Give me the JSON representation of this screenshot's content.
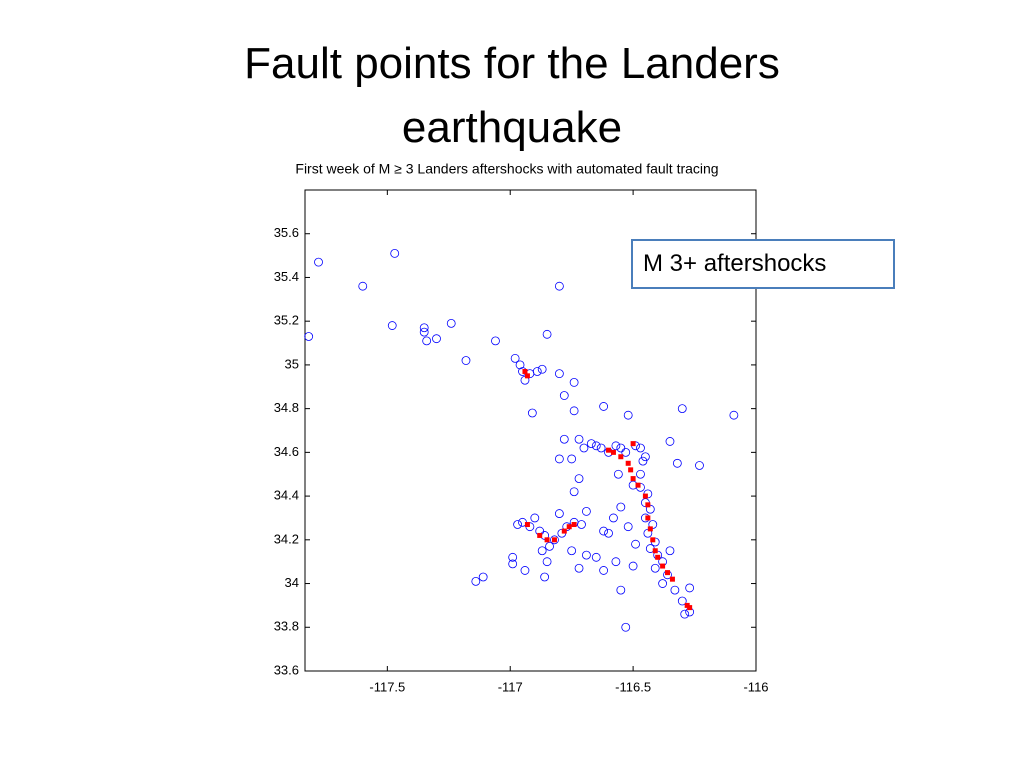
{
  "title": "Fault points for the Landers earthquake",
  "chart_data": {
    "type": "scatter",
    "title": "First week of M ≥ 3 Landers aftershocks with automated fault tracing",
    "annotation": "M 3+ aftershocks",
    "xlim": [
      -117.835,
      -116
    ],
    "ylim": [
      33.6,
      35.8
    ],
    "xticks": [
      -117.5,
      -117,
      -116.5,
      -116
    ],
    "yticks": [
      33.6,
      33.8,
      34,
      34.2,
      34.4,
      34.6,
      34.8,
      35,
      35.2,
      35.4,
      35.6
    ],
    "series": [
      {
        "color": "#0000ff",
        "marker": "circle",
        "x": [
          -117.82,
          -117.78,
          -117.6,
          -117.47,
          -117.48,
          -117.35,
          -117.35,
          -117.34,
          -117.3,
          -117.24,
          -117.18,
          -117.06,
          -116.85,
          -116.8,
          -116.98,
          -116.96,
          -116.95,
          -116.94,
          -116.92,
          -116.89,
          -116.87,
          -116.8,
          -116.74,
          -116.78,
          -116.91,
          -116.74,
          -116.62,
          -116.52,
          -116.3,
          -116.09,
          -116.23,
          -116.72,
          -116.7,
          -116.67,
          -116.65,
          -116.63,
          -116.6,
          -116.57,
          -116.55,
          -116.53,
          -116.49,
          -116.47,
          -116.46,
          -116.45,
          -116.47,
          -116.5,
          -116.47,
          -116.44,
          -116.45,
          -116.43,
          -116.45,
          -116.42,
          -116.44,
          -116.41,
          -116.43,
          -116.4,
          -116.38,
          -116.41,
          -116.36,
          -116.38,
          -116.33,
          -116.3,
          -116.27,
          -116.29,
          -116.27,
          -116.35,
          -116.52,
          -116.55,
          -116.58,
          -116.6,
          -116.65,
          -116.62,
          -116.57,
          -116.5,
          -116.49,
          -116.55,
          -116.53,
          -116.69,
          -116.72,
          -116.75,
          -116.8,
          -116.78,
          -116.74,
          -116.97,
          -116.95,
          -116.92,
          -116.9,
          -116.88,
          -116.86,
          -116.84,
          -116.87,
          -116.85,
          -116.82,
          -116.79,
          -116.77,
          -116.74,
          -116.71,
          -116.75,
          -116.72,
          -116.69,
          -116.86,
          -116.94,
          -116.99,
          -116.99,
          -117.14,
          -117.11,
          -116.8,
          -116.62,
          -116.56,
          -116.35,
          -116.32
        ],
        "values": [
          35.13,
          35.47,
          35.36,
          35.51,
          35.18,
          35.17,
          35.15,
          35.11,
          35.12,
          35.19,
          35.02,
          35.11,
          35.14,
          35.36,
          35.03,
          35.0,
          34.97,
          34.93,
          34.96,
          34.97,
          34.98,
          34.96,
          34.92,
          34.86,
          34.78,
          34.79,
          34.81,
          34.77,
          34.8,
          34.77,
          34.54,
          34.66,
          34.62,
          34.64,
          34.63,
          34.62,
          34.6,
          34.63,
          34.62,
          34.6,
          34.63,
          34.62,
          34.56,
          34.58,
          34.5,
          34.45,
          34.44,
          34.41,
          34.37,
          34.34,
          34.3,
          34.27,
          34.23,
          34.19,
          34.16,
          34.13,
          34.1,
          34.07,
          34.04,
          34.0,
          33.97,
          33.92,
          33.87,
          33.86,
          33.98,
          34.15,
          34.26,
          34.35,
          34.3,
          34.23,
          34.12,
          34.06,
          34.1,
          34.08,
          34.18,
          33.97,
          33.8,
          34.33,
          34.48,
          34.57,
          34.57,
          34.66,
          34.42,
          34.27,
          34.28,
          34.26,
          34.3,
          34.24,
          34.22,
          34.17,
          34.15,
          34.1,
          34.2,
          34.23,
          34.26,
          34.28,
          34.27,
          34.15,
          34.07,
          34.13,
          34.03,
          34.06,
          34.12,
          34.09,
          34.01,
          34.03,
          34.32,
          34.24,
          34.5,
          34.65,
          34.55
        ]
      },
      {
        "color": "#ff0000",
        "marker": "square",
        "x": [
          -116.94,
          -116.93,
          -116.6,
          -116.58,
          -116.55,
          -116.52,
          -116.51,
          -116.5,
          -116.48,
          -116.45,
          -116.44,
          -116.44,
          -116.43,
          -116.42,
          -116.41,
          -116.4,
          -116.38,
          -116.36,
          -116.34,
          -116.28,
          -116.27,
          -116.5,
          -116.93,
          -116.88,
          -116.85,
          -116.82,
          -116.78,
          -116.76,
          -116.74
        ],
        "values": [
          34.97,
          34.95,
          34.61,
          34.6,
          34.58,
          34.55,
          34.52,
          34.48,
          34.45,
          34.4,
          34.36,
          34.3,
          34.25,
          34.2,
          34.15,
          34.12,
          34.08,
          34.05,
          34.02,
          33.9,
          33.89,
          34.64,
          34.27,
          34.22,
          34.2,
          34.2,
          34.24,
          34.26,
          34.27
        ]
      }
    ]
  }
}
